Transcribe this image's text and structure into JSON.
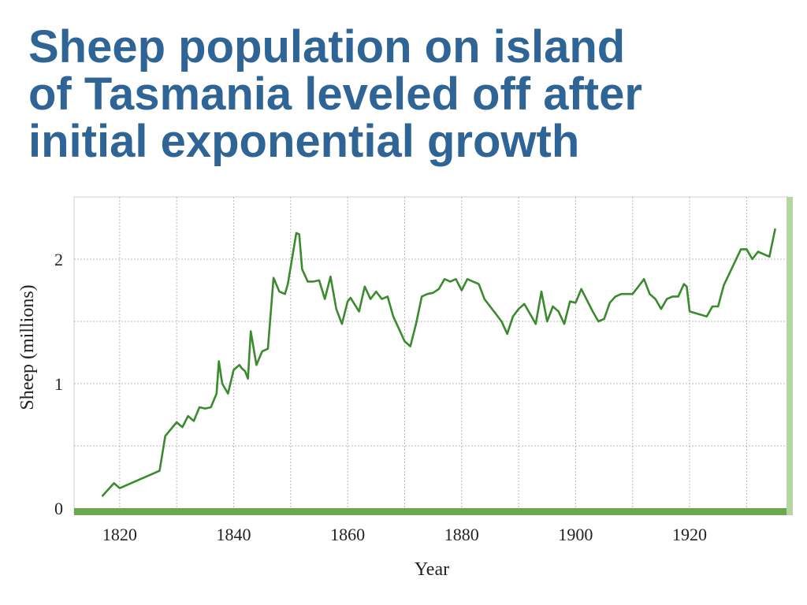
{
  "title": {
    "lines": [
      "Sheep population on island",
      "of Tasmania leveled off after",
      "initial exponential growth"
    ]
  },
  "colors": {
    "title": "#2f6496",
    "line": "#3a8a2e",
    "axis_bar": "#6aa84f",
    "right_bar": "#b5d6a0",
    "grid": "#b8b8b8"
  },
  "chart_data": {
    "type": "line",
    "xlabel": "Year",
    "ylabel": "Sheep (millions)",
    "xlim": [
      1812,
      1937
    ],
    "ylim": [
      0,
      2.5
    ],
    "xticks": [
      1820,
      1840,
      1860,
      1880,
      1900,
      1920
    ],
    "yticks": [
      0,
      1,
      2
    ],
    "grid": true,
    "legend": "none",
    "series": [
      {
        "x": [
          1817,
          1819,
          1820,
          1827,
          1828,
          1830,
          1831,
          1832,
          1833,
          1834,
          1835,
          1836,
          1837,
          1837.4,
          1838,
          1839,
          1840,
          1841,
          1841.5,
          1842,
          1842.5,
          1843,
          1844,
          1845,
          1846,
          1847,
          1848,
          1849,
          1849.5,
          1851,
          1851.5,
          1852,
          1853,
          1854,
          1855,
          1856,
          1857,
          1858,
          1859,
          1860,
          1860.5,
          1862,
          1863,
          1864,
          1865,
          1866,
          1867,
          1868,
          1870,
          1871,
          1872,
          1873,
          1874,
          1875,
          1876,
          1877,
          1878,
          1879,
          1880,
          1881,
          1883,
          1884,
          1885,
          1886,
          1887,
          1888,
          1889,
          1890,
          1891,
          1892,
          1893,
          1894,
          1895,
          1896,
          1897,
          1898,
          1899,
          1900,
          1901,
          1903,
          1904,
          1905,
          1906,
          1907,
          1908,
          1909,
          1910,
          1911,
          1912,
          1913,
          1914,
          1915,
          1916,
          1917,
          1918,
          1919,
          1919.5,
          1920,
          1923,
          1924,
          1925,
          1926,
          1929,
          1930,
          1931,
          1932,
          1934,
          1935
        ],
        "y": [
          0.1,
          0.2,
          0.16,
          0.3,
          0.58,
          0.69,
          0.65,
          0.74,
          0.7,
          0.81,
          0.8,
          0.81,
          0.92,
          1.18,
          1.0,
          0.92,
          1.11,
          1.15,
          1.12,
          1.1,
          1.04,
          1.42,
          1.15,
          1.26,
          1.28,
          1.85,
          1.74,
          1.72,
          1.8,
          2.21,
          2.2,
          1.92,
          1.82,
          1.82,
          1.83,
          1.68,
          1.86,
          1.6,
          1.48,
          1.66,
          1.69,
          1.58,
          1.78,
          1.68,
          1.74,
          1.68,
          1.7,
          1.54,
          1.34,
          1.3,
          1.48,
          1.7,
          1.72,
          1.73,
          1.76,
          1.84,
          1.82,
          1.84,
          1.75,
          1.84,
          1.8,
          1.68,
          1.62,
          1.56,
          1.5,
          1.4,
          1.54,
          1.6,
          1.64,
          1.56,
          1.48,
          1.74,
          1.5,
          1.62,
          1.58,
          1.48,
          1.66,
          1.65,
          1.76,
          1.58,
          1.5,
          1.52,
          1.65,
          1.7,
          1.72,
          1.72,
          1.72,
          1.78,
          1.84,
          1.72,
          1.68,
          1.6,
          1.68,
          1.7,
          1.7,
          1.8,
          1.78,
          1.58,
          1.54,
          1.62,
          1.62,
          1.79,
          2.08,
          2.08,
          2.0,
          2.06,
          2.02,
          2.24
        ]
      }
    ]
  }
}
